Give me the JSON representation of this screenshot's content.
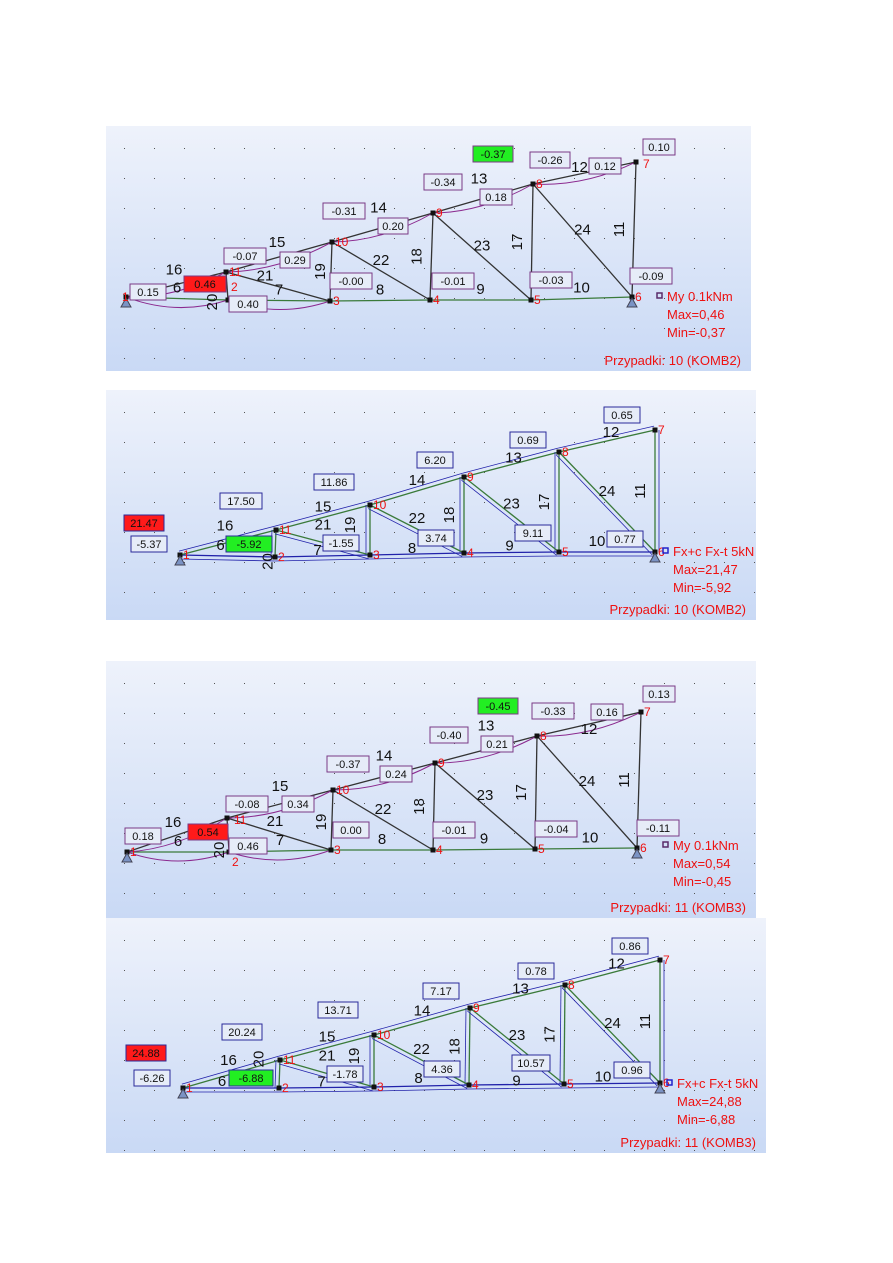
{
  "colors": {
    "panel_bg_top": "#eef2fb",
    "panel_bg_bottom": "#c9d9f5",
    "max_fill": "#ff1a1a",
    "min_fill": "#22ee22",
    "label_border_moment": "#7a3a86",
    "label_border_force": "#2a2a9a",
    "legend_text": "#ee1111",
    "node_number": "#ee1111",
    "moment_curve": "#8b2a8f",
    "force_line": "#2222aa",
    "chord": "#3a7a3a"
  },
  "topology": {
    "node_numbers": [
      "1",
      "2",
      "3",
      "4",
      "5",
      "6",
      "7",
      "8",
      "9",
      "10",
      "11"
    ],
    "members": [
      {
        "id": "6",
        "from": 1,
        "to": 2
      },
      {
        "id": "7",
        "from": 2,
        "to": 3
      },
      {
        "id": "8",
        "from": 3,
        "to": 4
      },
      {
        "id": "9",
        "from": 4,
        "to": 5
      },
      {
        "id": "10",
        "from": 5,
        "to": 6
      },
      {
        "id": "11",
        "from": 6,
        "to": 7
      },
      {
        "id": "12",
        "from": 7,
        "to": 8
      },
      {
        "id": "13",
        "from": 8,
        "to": 9
      },
      {
        "id": "14",
        "from": 9,
        "to": 10
      },
      {
        "id": "15",
        "from": 10,
        "to": 11
      },
      {
        "id": "16",
        "from": 11,
        "to": 1
      },
      {
        "id": "17",
        "from": 8,
        "to": 5
      },
      {
        "id": "18",
        "from": 9,
        "to": 4
      },
      {
        "id": "19",
        "from": 10,
        "to": 3
      },
      {
        "id": "20",
        "from": 11,
        "to": 2
      },
      {
        "id": "21",
        "from": 11,
        "to": 3
      },
      {
        "id": "22",
        "from": 10,
        "to": 4
      },
      {
        "id": "23",
        "from": 9,
        "to": 5
      },
      {
        "id": "24",
        "from": 8,
        "to": 6
      }
    ]
  },
  "panels": [
    {
      "type": "moment",
      "legend_symbol": "My",
      "legend_unit": "0.1kNm",
      "max": "Max=0,46",
      "min": "Min=-0,37",
      "case": "Przypadki: 10 (KOMB2)",
      "labels": [
        "0.15",
        "0.46",
        "-0.07",
        "0.29",
        "0.40",
        "-0.31",
        "-0.00",
        "0.20",
        "-0.34",
        "-0.01",
        "0.18",
        "-0.37",
        "-0.26",
        "-0.03",
        "0.12",
        "0.10",
        "-0.09"
      ],
      "max_label": "0.46",
      "min_label": "-0.37"
    },
    {
      "type": "force",
      "legend_symbol": "Fx+c Fx-t",
      "legend_unit": "5kN",
      "max": "Max=21,47",
      "min": "Min=-5,92",
      "case": "Przypadki: 10 (KOMB2)",
      "labels": [
        "21.47",
        "-5.37",
        "17.50",
        "-5.92",
        "-1.55",
        "11.86",
        "3.74",
        "6.20",
        "0.69",
        "9.11",
        "0.65",
        "0.77"
      ],
      "max_label": "21.47",
      "min_label": "-5.92"
    },
    {
      "type": "moment",
      "legend_symbol": "My",
      "legend_unit": "0.1kNm",
      "max": "Max=0,54",
      "min": "Min=-0,45",
      "case": "Przypadki: 11 (KOMB3)",
      "labels": [
        "0.18",
        "0.54",
        "-0.08",
        "0.34",
        "0.46",
        "-0.37",
        "0.00",
        "0.24",
        "-0.40",
        "-0.01",
        "0.21",
        "-0.45",
        "-0.33",
        "-0.04",
        "0.16",
        "0.13",
        "-0.11"
      ],
      "max_label": "0.54",
      "min_label": "-0.45"
    },
    {
      "type": "force",
      "legend_symbol": "Fx+c Fx-t",
      "legend_unit": "5kN",
      "max": "Max=24,88",
      "min": "Min=-6,88",
      "case": "Przypadki: 11 (KOMB3)",
      "labels": [
        "24.88",
        "-6.26",
        "20.24",
        "-6.88",
        "-1.78",
        "13.71",
        "4.36",
        "7.17",
        "0.78",
        "10.57",
        "0.86",
        "0.96"
      ],
      "max_label": "24.88",
      "min_label": "-6.88"
    }
  ]
}
